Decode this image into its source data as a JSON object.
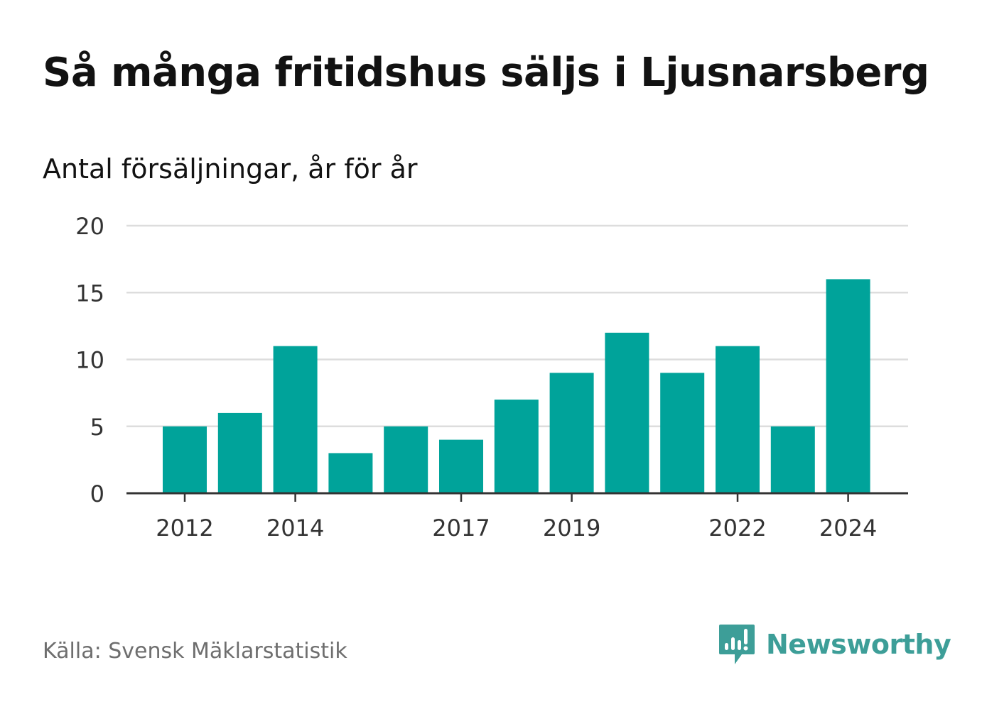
{
  "title": "Så många fritidshus säljs i Ljusnarsberg",
  "subtitle": "Antal försäljningar, år för år",
  "source": "Källa: Svensk Mäklarstatistik",
  "brand": {
    "name": "Newsworthy",
    "color": "#3d9e98",
    "icon": "newsworthy-chart-bubble-icon"
  },
  "chart_data": {
    "type": "bar",
    "title": "",
    "xlabel": "",
    "ylabel": "",
    "categories": [
      "2012",
      "2013",
      "2014",
      "2015",
      "2016",
      "2017",
      "2018",
      "2019",
      "2020",
      "2021",
      "2022",
      "2023",
      "2024"
    ],
    "values": [
      5,
      6,
      11,
      3,
      5,
      4,
      7,
      9,
      12,
      9,
      11,
      5,
      16
    ],
    "x_tick_labels": [
      "2012",
      "2014",
      "2017",
      "2019",
      "2022",
      "2024"
    ],
    "y_ticks": [
      0,
      5,
      10,
      15,
      20
    ],
    "ylim": [
      0,
      20
    ],
    "grid": true,
    "bar_color": "#00a39a"
  }
}
